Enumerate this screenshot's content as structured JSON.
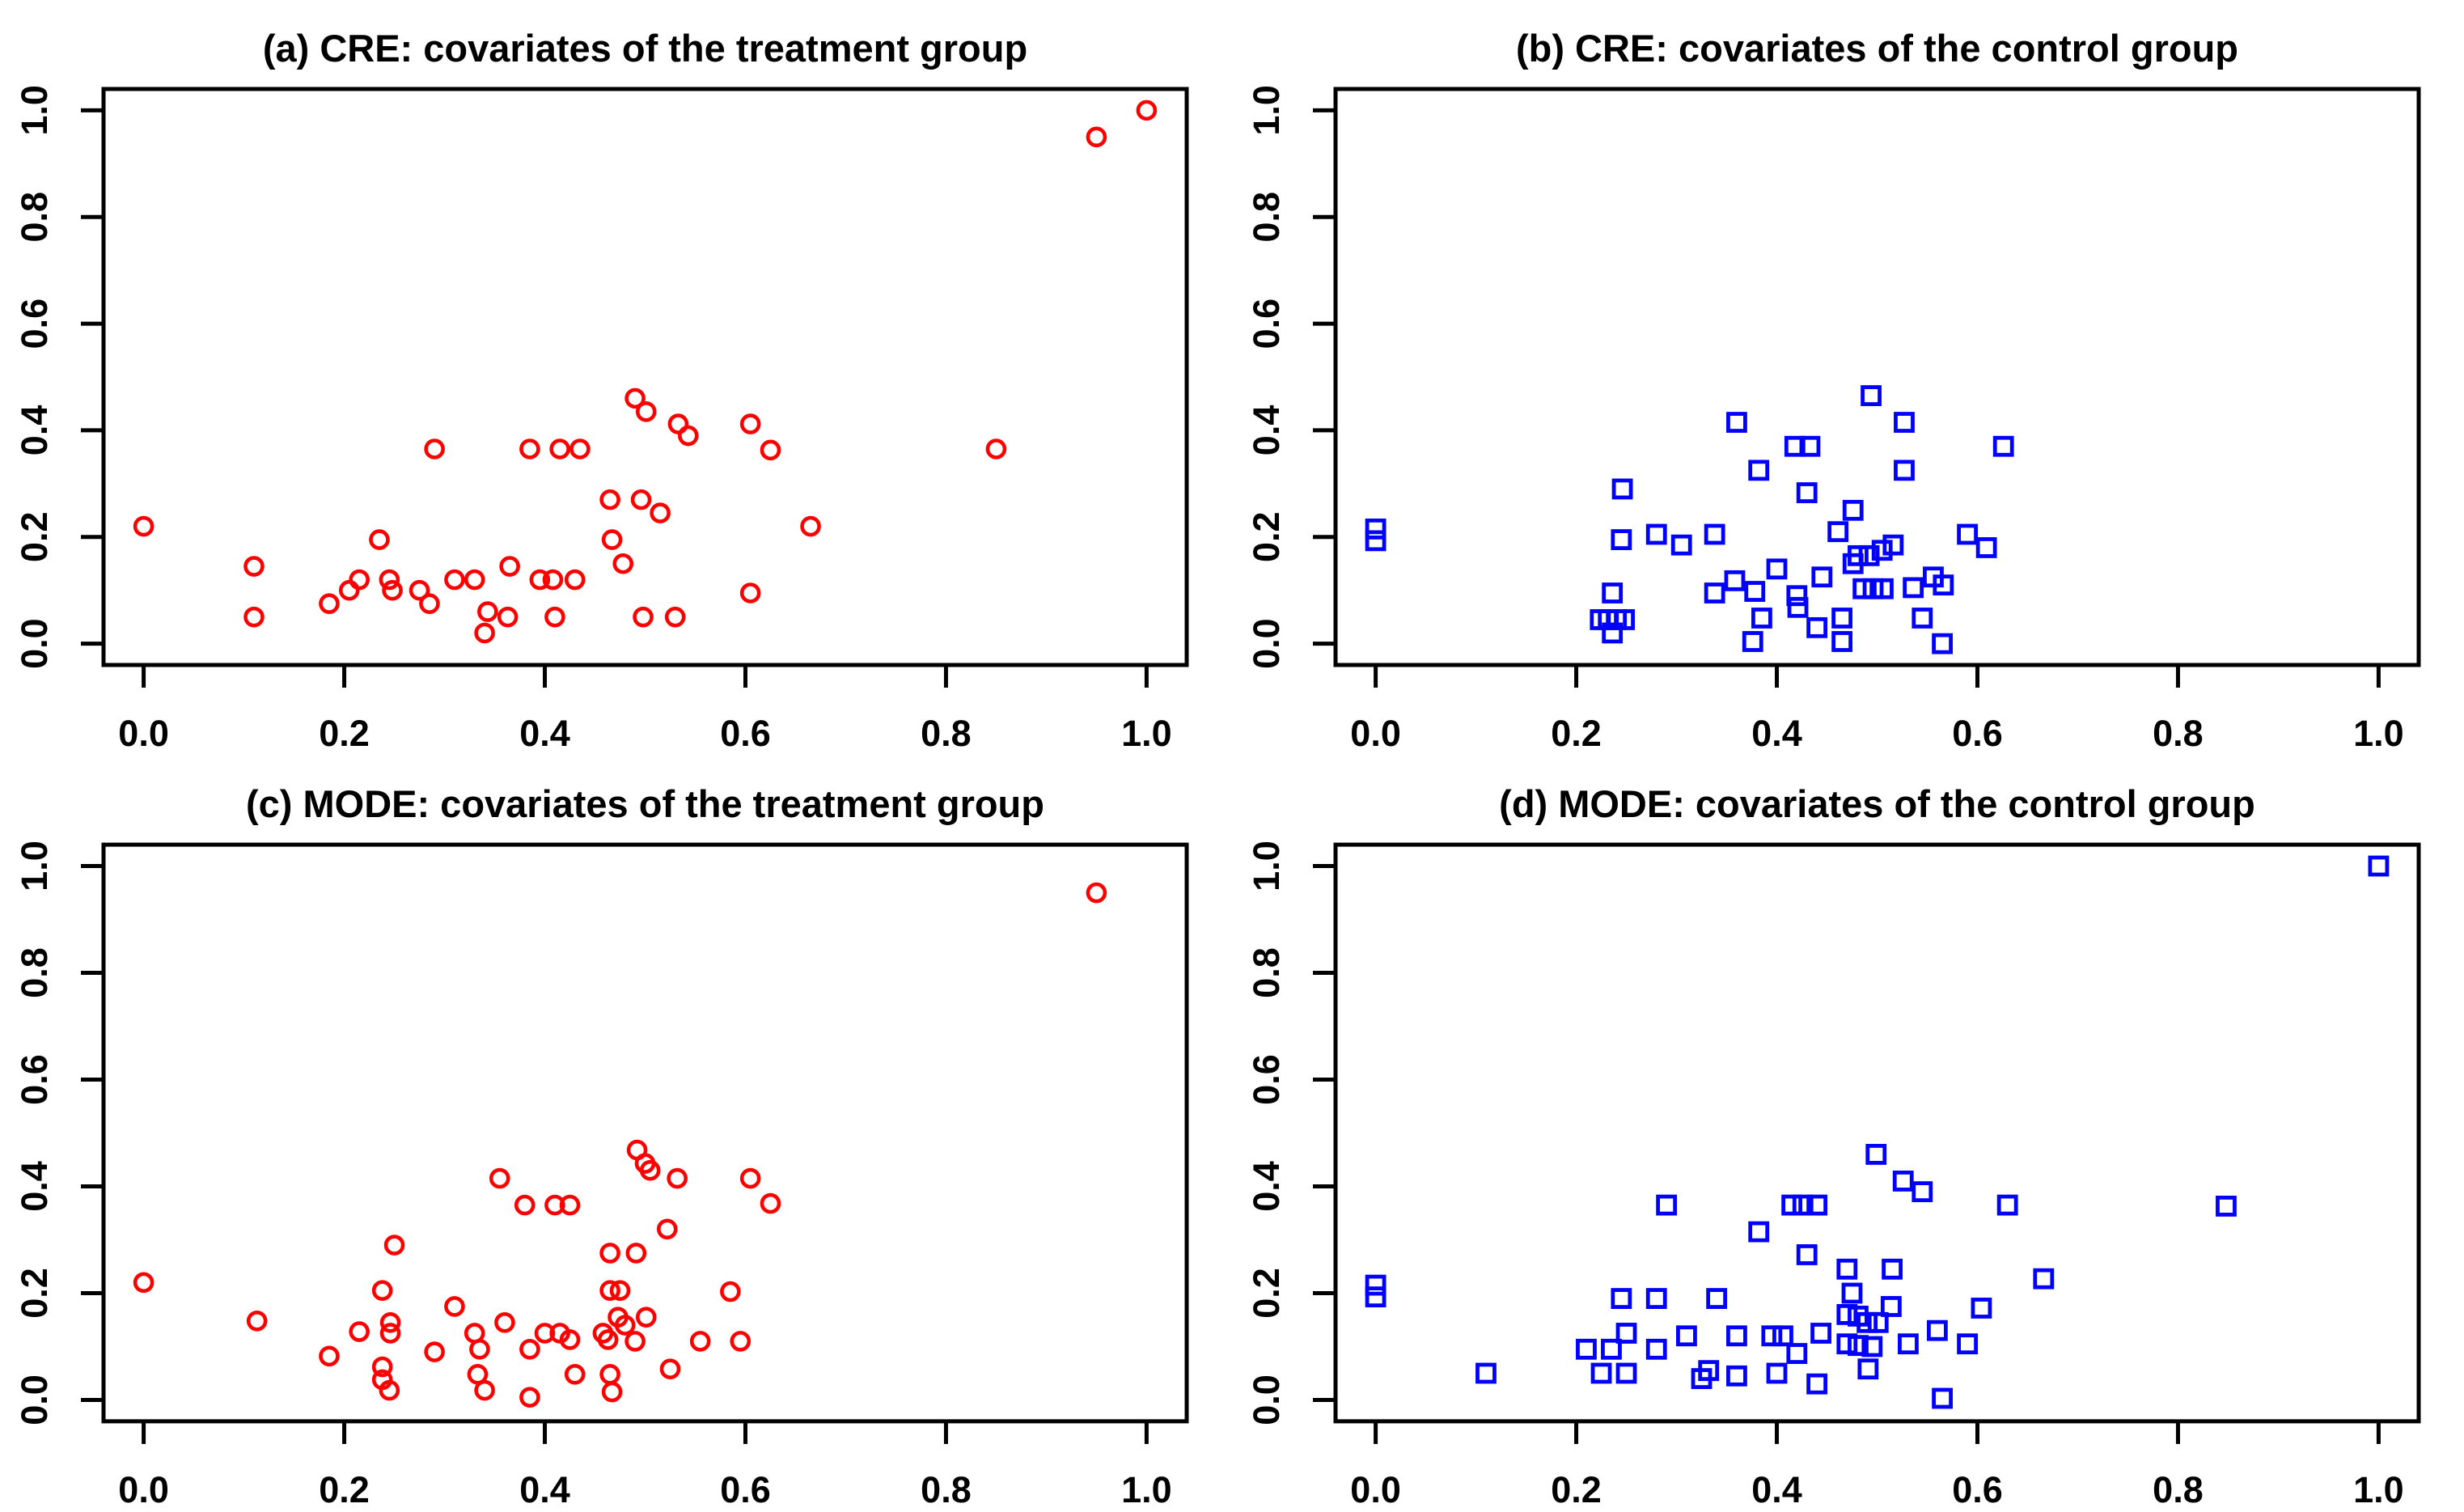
{
  "figure": {
    "background": "#ffffff",
    "axis_color": "#000000",
    "treatment_color": "#ff0000",
    "control_color": "#0000ff"
  },
  "chart_data": [
    {
      "id": "a",
      "type": "scatter",
      "title": "(a) CRE: covariates of the treatment group",
      "marker": "circle",
      "color": "#ff0000",
      "xlabel": "",
      "ylabel": "",
      "xlim": [
        0,
        1
      ],
      "ylim": [
        0,
        1
      ],
      "xtick_labels": [
        "0.0",
        "0.2",
        "0.4",
        "0.6",
        "0.8",
        "1.0"
      ],
      "ytick_labels": [
        "0.0",
        "0.2",
        "0.4",
        "0.6",
        "0.8",
        "1.0"
      ],
      "grid": false,
      "legend": "none",
      "points": [
        [
          0.0,
          0.22
        ],
        [
          0.11,
          0.145
        ],
        [
          0.11,
          0.05
        ],
        [
          0.185,
          0.075
        ],
        [
          0.205,
          0.1
        ],
        [
          0.215,
          0.12
        ],
        [
          0.235,
          0.195
        ],
        [
          0.245,
          0.12
        ],
        [
          0.248,
          0.1
        ],
        [
          0.275,
          0.1
        ],
        [
          0.285,
          0.075
        ],
        [
          0.29,
          0.365
        ],
        [
          0.31,
          0.12
        ],
        [
          0.33,
          0.12
        ],
        [
          0.343,
          0.06
        ],
        [
          0.34,
          0.02
        ],
        [
          0.363,
          0.05
        ],
        [
          0.365,
          0.145
        ],
        [
          0.385,
          0.365
        ],
        [
          0.395,
          0.12
        ],
        [
          0.408,
          0.12
        ],
        [
          0.41,
          0.05
        ],
        [
          0.415,
          0.365
        ],
        [
          0.43,
          0.12
        ],
        [
          0.435,
          0.365
        ],
        [
          0.465,
          0.27
        ],
        [
          0.467,
          0.195
        ],
        [
          0.478,
          0.15
        ],
        [
          0.49,
          0.46
        ],
        [
          0.496,
          0.27
        ],
        [
          0.501,
          0.435
        ],
        [
          0.498,
          0.05
        ],
        [
          0.515,
          0.245
        ],
        [
          0.53,
          0.05
        ],
        [
          0.533,
          0.412
        ],
        [
          0.543,
          0.39
        ],
        [
          0.605,
          0.095
        ],
        [
          0.605,
          0.412
        ],
        [
          0.625,
          0.363
        ],
        [
          0.665,
          0.22
        ],
        [
          0.85,
          0.365
        ],
        [
          0.95,
          0.95
        ],
        [
          1.0,
          1.0
        ]
      ]
    },
    {
      "id": "b",
      "type": "scatter",
      "title": "(b) CRE: covariates of the control group",
      "marker": "square",
      "color": "#0000ff",
      "xlabel": "",
      "ylabel": "",
      "xlim": [
        0,
        1
      ],
      "ylim": [
        0,
        1
      ],
      "xtick_labels": [
        "0.0",
        "0.2",
        "0.4",
        "0.6",
        "0.8",
        "1.0"
      ],
      "ytick_labels": [
        "0.0",
        "0.2",
        "0.4",
        "0.6",
        "0.8",
        "1.0"
      ],
      "grid": false,
      "legend": "none",
      "points": [
        [
          0.0,
          0.215
        ],
        [
          0.0,
          0.193
        ],
        [
          0.224,
          0.045
        ],
        [
          0.232,
          0.045
        ],
        [
          0.24,
          0.045
        ],
        [
          0.248,
          0.045
        ],
        [
          0.236,
          0.02
        ],
        [
          0.236,
          0.095
        ],
        [
          0.245,
          0.195
        ],
        [
          0.246,
          0.29
        ],
        [
          0.28,
          0.205
        ],
        [
          0.305,
          0.185
        ],
        [
          0.338,
          0.205
        ],
        [
          0.338,
          0.095
        ],
        [
          0.36,
          0.415
        ],
        [
          0.358,
          0.118
        ],
        [
          0.382,
          0.325
        ],
        [
          0.378,
          0.098
        ],
        [
          0.385,
          0.048
        ],
        [
          0.376,
          0.004
        ],
        [
          0.4,
          0.14
        ],
        [
          0.418,
          0.37
        ],
        [
          0.433,
          0.37
        ],
        [
          0.42,
          0.09
        ],
        [
          0.421,
          0.068
        ],
        [
          0.43,
          0.283
        ],
        [
          0.445,
          0.125
        ],
        [
          0.44,
          0.03
        ],
        [
          0.461,
          0.21
        ],
        [
          0.465,
          0.048
        ],
        [
          0.465,
          0.004
        ],
        [
          0.476,
          0.25
        ],
        [
          0.476,
          0.15
        ],
        [
          0.481,
          0.165
        ],
        [
          0.492,
          0.165
        ],
        [
          0.486,
          0.103
        ],
        [
          0.496,
          0.103
        ],
        [
          0.506,
          0.103
        ],
        [
          0.494,
          0.465
        ],
        [
          0.505,
          0.175
        ],
        [
          0.516,
          0.185
        ],
        [
          0.527,
          0.415
        ],
        [
          0.527,
          0.325
        ],
        [
          0.536,
          0.105
        ],
        [
          0.545,
          0.048
        ],
        [
          0.556,
          0.125
        ],
        [
          0.566,
          0.11
        ],
        [
          0.565,
          0.0
        ],
        [
          0.59,
          0.205
        ],
        [
          0.609,
          0.18
        ],
        [
          0.626,
          0.37
        ]
      ]
    },
    {
      "id": "c",
      "type": "scatter",
      "title": "(c) MODE: covariates of the treatment group",
      "marker": "circle",
      "color": "#ff0000",
      "xlabel": "",
      "ylabel": "",
      "xtick_labels": [
        "0.0",
        "0.2",
        "0.4",
        "0.6",
        "0.8",
        "1.0"
      ],
      "ytick_labels": [
        "0.0",
        "0.2",
        "0.4",
        "0.6",
        "0.8",
        "1.0"
      ],
      "xlim": [
        0,
        1
      ],
      "ylim": [
        0,
        1
      ],
      "grid": false,
      "legend": "none",
      "points": [
        [
          0.0,
          0.22
        ],
        [
          0.113,
          0.148
        ],
        [
          0.185,
          0.082
        ],
        [
          0.215,
          0.128
        ],
        [
          0.238,
          0.205
        ],
        [
          0.246,
          0.145
        ],
        [
          0.246,
          0.125
        ],
        [
          0.238,
          0.062
        ],
        [
          0.238,
          0.038
        ],
        [
          0.245,
          0.018
        ],
        [
          0.25,
          0.29
        ],
        [
          0.29,
          0.09
        ],
        [
          0.31,
          0.175
        ],
        [
          0.33,
          0.125
        ],
        [
          0.335,
          0.095
        ],
        [
          0.333,
          0.048
        ],
        [
          0.34,
          0.018
        ],
        [
          0.355,
          0.415
        ],
        [
          0.36,
          0.145
        ],
        [
          0.38,
          0.365
        ],
        [
          0.385,
          0.095
        ],
        [
          0.385,
          0.005
        ],
        [
          0.4,
          0.125
        ],
        [
          0.41,
          0.365
        ],
        [
          0.425,
          0.365
        ],
        [
          0.415,
          0.125
        ],
        [
          0.425,
          0.113
        ],
        [
          0.43,
          0.048
        ],
        [
          0.458,
          0.125
        ],
        [
          0.463,
          0.113
        ],
        [
          0.465,
          0.205
        ],
        [
          0.465,
          0.275
        ],
        [
          0.465,
          0.048
        ],
        [
          0.467,
          0.015
        ],
        [
          0.475,
          0.205
        ],
        [
          0.473,
          0.155
        ],
        [
          0.48,
          0.14
        ],
        [
          0.492,
          0.468
        ],
        [
          0.5,
          0.443
        ],
        [
          0.505,
          0.43
        ],
        [
          0.491,
          0.275
        ],
        [
          0.49,
          0.11
        ],
        [
          0.501,
          0.155
        ],
        [
          0.522,
          0.32
        ],
        [
          0.532,
          0.415
        ],
        [
          0.525,
          0.058
        ],
        [
          0.555,
          0.11
        ],
        [
          0.585,
          0.203
        ],
        [
          0.605,
          0.415
        ],
        [
          0.595,
          0.11
        ],
        [
          0.625,
          0.368
        ],
        [
          0.95,
          0.95
        ]
      ]
    },
    {
      "id": "d",
      "type": "scatter",
      "title": "(d) MODE: covariates of the control group",
      "marker": "square",
      "color": "#0000ff",
      "xlabel": "",
      "ylabel": "",
      "xtick_labels": [
        "0.0",
        "0.2",
        "0.4",
        "0.6",
        "0.8",
        "1.0"
      ],
      "ytick_labels": [
        "0.0",
        "0.2",
        "0.4",
        "0.6",
        "0.8",
        "1.0"
      ],
      "xlim": [
        0,
        1
      ],
      "ylim": [
        0,
        1
      ],
      "grid": false,
      "legend": "none",
      "points": [
        [
          0.0,
          0.215
        ],
        [
          0.0,
          0.193
        ],
        [
          0.11,
          0.05
        ],
        [
          0.21,
          0.095
        ],
        [
          0.225,
          0.05
        ],
        [
          0.235,
          0.095
        ],
        [
          0.245,
          0.19
        ],
        [
          0.25,
          0.125
        ],
        [
          0.25,
          0.05
        ],
        [
          0.28,
          0.19
        ],
        [
          0.28,
          0.095
        ],
        [
          0.29,
          0.365
        ],
        [
          0.31,
          0.12
        ],
        [
          0.325,
          0.04
        ],
        [
          0.332,
          0.055
        ],
        [
          0.34,
          0.19
        ],
        [
          0.36,
          0.12
        ],
        [
          0.36,
          0.045
        ],
        [
          0.382,
          0.315
        ],
        [
          0.395,
          0.12
        ],
        [
          0.406,
          0.12
        ],
        [
          0.4,
          0.05
        ],
        [
          0.415,
          0.365
        ],
        [
          0.426,
          0.365
        ],
        [
          0.44,
          0.365
        ],
        [
          0.42,
          0.087
        ],
        [
          0.43,
          0.272
        ],
        [
          0.444,
          0.125
        ],
        [
          0.44,
          0.03
        ],
        [
          0.47,
          0.245
        ],
        [
          0.475,
          0.2
        ],
        [
          0.47,
          0.16
        ],
        [
          0.481,
          0.157
        ],
        [
          0.47,
          0.105
        ],
        [
          0.481,
          0.102
        ],
        [
          0.495,
          0.1
        ],
        [
          0.49,
          0.145
        ],
        [
          0.501,
          0.145
        ],
        [
          0.491,
          0.058
        ],
        [
          0.499,
          0.46
        ],
        [
          0.515,
          0.245
        ],
        [
          0.514,
          0.175
        ],
        [
          0.526,
          0.41
        ],
        [
          0.531,
          0.105
        ],
        [
          0.545,
          0.39
        ],
        [
          0.56,
          0.13
        ],
        [
          0.565,
          0.003
        ],
        [
          0.59,
          0.105
        ],
        [
          0.604,
          0.172
        ],
        [
          0.63,
          0.365
        ],
        [
          0.666,
          0.227
        ],
        [
          0.848,
          0.363
        ],
        [
          1.0,
          1.0
        ]
      ]
    }
  ]
}
